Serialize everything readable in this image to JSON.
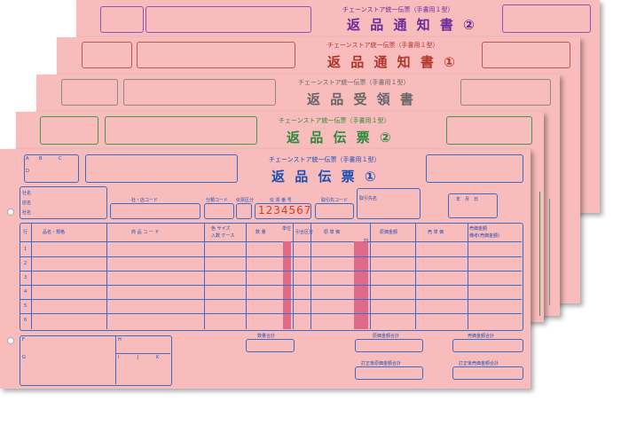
{
  "sheets": [
    {
      "subtitle": "チェーンストア統一伝票（手書用１型）",
      "title": "返 品 通 知 書 ②"
    },
    {
      "subtitle": "チェーンストア統一伝票（手書用１型）",
      "title": "返 品 通 知 書 ①"
    },
    {
      "subtitle": "チェーンストア統一伝票（手書用１型）",
      "title": "返 品 受 領 書"
    },
    {
      "subtitle": "チェーンストア統一伝票（手書用１型）",
      "title": "返 品 伝 票 ②"
    },
    {
      "subtitle": "チェーンストア統一伝票（手書用１型）",
      "title": "返 品 伝 票 ①"
    }
  ],
  "front": {
    "corner_letters": [
      "A",
      "B",
      "C",
      "D"
    ],
    "sender_labels": [
      "社名",
      "店名",
      "社名"
    ],
    "labels": {
      "store_code": "社・店コード",
      "category_code": "分類コード",
      "slip_class": "伝票区分",
      "slip_number": "伝 票 番 号",
      "supplier_code": "取引先コード",
      "supplier_name": "取引先名",
      "date": "年　月　日"
    },
    "slip_number": "1234567",
    "columns": [
      "行",
      "品名・規格",
      "商 品 コ ー ド",
      "色 サイズ",
      "入数 ケース",
      "数 量",
      "単位",
      "引合区分",
      "原 単 価",
      "原価金額",
      "売 単 価",
      "売価金額",
      "備考(売価金額)"
    ],
    "row_numbers": [
      "1",
      "2",
      "3",
      "4",
      "5",
      "6"
    ],
    "unit_yen": "円",
    "bottom": {
      "qty_total": "数量合計",
      "cost_total": "原価金額合計",
      "price_total": "売価金額合計",
      "corrected_cost": "訂正後原価金額合計",
      "corrected_price": "訂正後売価金額合計",
      "footer_letters": [
        "F",
        "G",
        "H",
        "I",
        "J",
        "K"
      ]
    }
  }
}
